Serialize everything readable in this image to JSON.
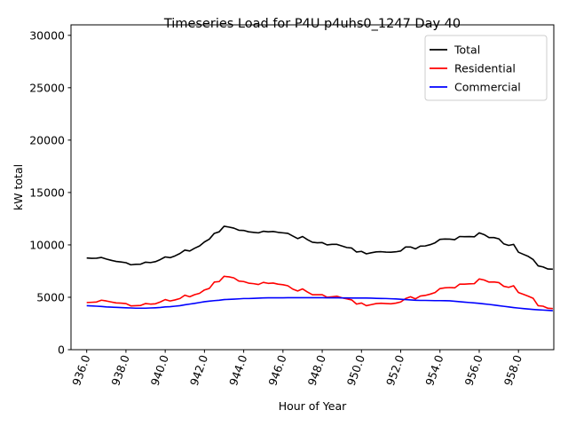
{
  "chart_data": {
    "type": "line",
    "title": "Timeseries Load for P4U p4uhs0_1247  Day 40",
    "xlabel": "Hour of Year",
    "ylabel": "kW total",
    "xlim": [
      935.2,
      959.8
    ],
    "ylim": [
      0,
      31000
    ],
    "x_ticks": [
      936,
      938,
      940,
      942,
      944,
      946,
      948,
      950,
      952,
      954,
      956,
      958
    ],
    "x_tick_labels": [
      "936.0",
      "938.0",
      "940.0",
      "942.0",
      "944.0",
      "946.0",
      "948.0",
      "950.0",
      "952.0",
      "954.0",
      "956.0",
      "958.0"
    ],
    "y_ticks": [
      0,
      5000,
      10000,
      15000,
      20000,
      25000,
      30000
    ],
    "y_tick_labels": [
      "0",
      "5000",
      "10000",
      "15000",
      "20000",
      "25000",
      "30000"
    ],
    "legend_position": "top-right",
    "x_start": 936.0,
    "x_step": 0.25,
    "series": [
      {
        "name": "Total",
        "color": "#000000",
        "values": [
          8750,
          8720,
          8730,
          8800,
          8650,
          8530,
          8420,
          8370,
          8300,
          8100,
          8150,
          8160,
          8350,
          8310,
          8400,
          8600,
          8850,
          8780,
          8950,
          9180,
          9500,
          9420,
          9680,
          9900,
          10280,
          10550,
          11100,
          11250,
          11780,
          11700,
          11600,
          11400,
          11380,
          11250,
          11200,
          11150,
          11300,
          11250,
          11280,
          11200,
          11150,
          11100,
          10850,
          10600,
          10800,
          10500,
          10250,
          10200,
          10220,
          10000,
          10050,
          10050,
          9900,
          9750,
          9700,
          9320,
          9380,
          9150,
          9250,
          9330,
          9350,
          9310,
          9300,
          9340,
          9420,
          9800,
          9800,
          9620,
          9880,
          9900,
          10020,
          10200,
          10530,
          10560,
          10550,
          10500,
          10800,
          10780,
          10790,
          10770,
          11150,
          10980,
          10700,
          10700,
          10580,
          10100,
          9950,
          10050,
          9300,
          9100,
          8900,
          8600,
          8000,
          7900,
          7700,
          7680
        ]
      },
      {
        "name": "Residential",
        "color": "#ff0000",
        "values": [
          4500,
          4520,
          4550,
          4720,
          4650,
          4550,
          4460,
          4440,
          4400,
          4180,
          4200,
          4220,
          4400,
          4350,
          4380,
          4550,
          4780,
          4650,
          4750,
          4880,
          5200,
          5050,
          5250,
          5380,
          5700,
          5850,
          6450,
          6500,
          7000,
          6950,
          6850,
          6550,
          6500,
          6350,
          6300,
          6220,
          6420,
          6330,
          6360,
          6250,
          6200,
          6100,
          5780,
          5600,
          5800,
          5500,
          5250,
          5250,
          5250,
          5000,
          5050,
          5100,
          4950,
          4850,
          4750,
          4350,
          4450,
          4200,
          4300,
          4400,
          4430,
          4400,
          4380,
          4440,
          4550,
          4880,
          5050,
          4850,
          5120,
          5180,
          5300,
          5450,
          5830,
          5900,
          5930,
          5900,
          6250,
          6250,
          6280,
          6300,
          6750,
          6650,
          6450,
          6460,
          6400,
          6050,
          5950,
          6100,
          5450,
          5280,
          5100,
          4900,
          4200,
          4150,
          3950,
          3920
        ]
      },
      {
        "name": "Commercial",
        "color": "#0000ff",
        "values": [
          4200,
          4180,
          4150,
          4120,
          4080,
          4060,
          4040,
          4020,
          4000,
          3980,
          3960,
          3960,
          3960,
          3980,
          4000,
          4030,
          4080,
          4100,
          4150,
          4200,
          4280,
          4350,
          4420,
          4500,
          4580,
          4630,
          4680,
          4720,
          4780,
          4800,
          4820,
          4850,
          4880,
          4880,
          4900,
          4920,
          4940,
          4950,
          4950,
          4950,
          4950,
          4960,
          4960,
          4960,
          4960,
          4960,
          4960,
          4960,
          4960,
          4950,
          4950,
          4950,
          4940,
          4940,
          4930,
          4930,
          4930,
          4930,
          4920,
          4900,
          4890,
          4880,
          4860,
          4840,
          4810,
          4780,
          4750,
          4720,
          4700,
          4700,
          4690,
          4680,
          4680,
          4670,
          4660,
          4620,
          4580,
          4540,
          4500,
          4460,
          4420,
          4370,
          4320,
          4260,
          4200,
          4140,
          4080,
          4020,
          3970,
          3920,
          3880,
          3840,
          3810,
          3780,
          3750,
          3720
        ]
      }
    ]
  }
}
